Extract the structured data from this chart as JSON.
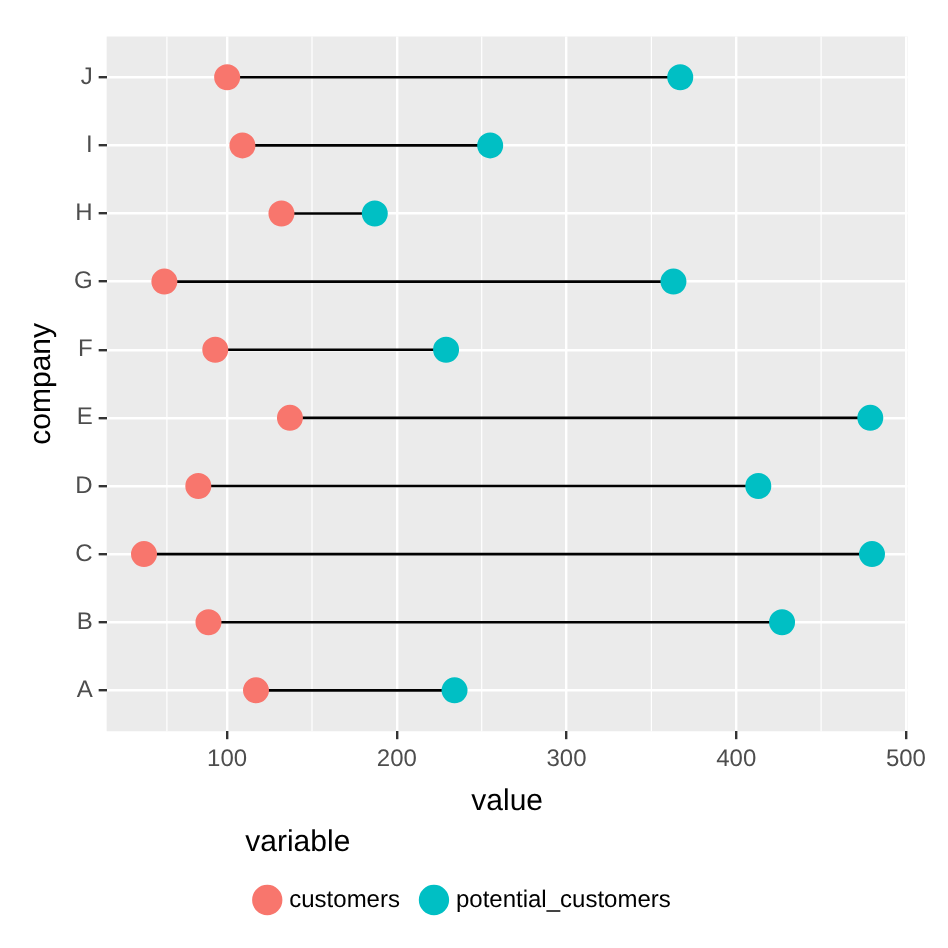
{
  "chart_data": {
    "type": "scatter",
    "orientation": "horizontal",
    "xlabel": "value",
    "ylabel": "company",
    "legend_title": "variable",
    "legend": "bottom",
    "grid": true,
    "marker": "circle",
    "categories": [
      "J",
      "I",
      "H",
      "G",
      "F",
      "E",
      "D",
      "C",
      "B",
      "A"
    ],
    "xlim": [
      29,
      501
    ],
    "xticks": [
      100,
      200,
      300,
      400,
      500
    ],
    "series": [
      {
        "name": "customers",
        "color": "#f8766d",
        "values": [
          100,
          109,
          132,
          63,
          93,
          137,
          83,
          51,
          89,
          117
        ]
      },
      {
        "name": "potential_customers",
        "color": "#00bfc4",
        "values": [
          367,
          255,
          187,
          363,
          229,
          479,
          413,
          480,
          427,
          234
        ]
      }
    ]
  }
}
